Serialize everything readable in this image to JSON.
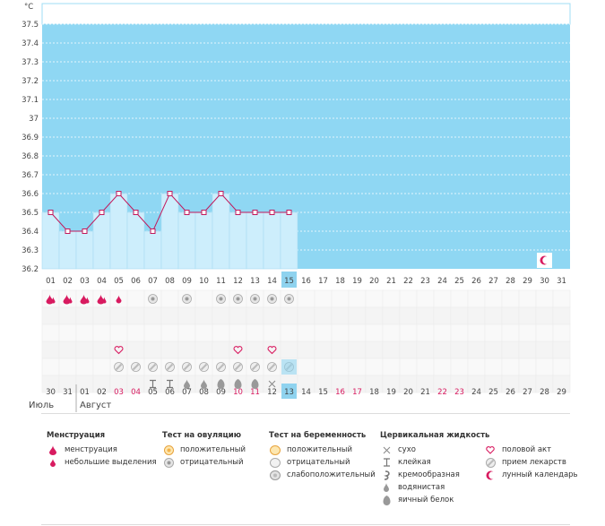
{
  "temp_unit": "°C",
  "y_labels": [
    "37.5",
    "37.4",
    "37.3",
    "37.2",
    "37.1",
    "37",
    "36.9",
    "36.8",
    "36.7",
    "36.6",
    "36.5",
    "36.4",
    "36.3",
    "36.2"
  ],
  "cycle_days": [
    "01",
    "02",
    "03",
    "04",
    "05",
    "06",
    "07",
    "08",
    "09",
    "10",
    "11",
    "12",
    "13",
    "14",
    "15",
    "16",
    "17",
    "18",
    "19",
    "20",
    "21",
    "22",
    "23",
    "24",
    "25",
    "26",
    "27",
    "28",
    "29",
    "30",
    "31"
  ],
  "calendar_days": [
    "30",
    "31",
    "01",
    "02",
    "03",
    "04",
    "05",
    "06",
    "07",
    "08",
    "09",
    "10",
    "11",
    "12",
    "13",
    "14",
    "15",
    "16",
    "17",
    "18",
    "19",
    "20",
    "21",
    "22",
    "23",
    "24",
    "25",
    "26",
    "27",
    "28",
    "29"
  ],
  "calendar_red": [
    4,
    5,
    11,
    12,
    17,
    18,
    23,
    24
  ],
  "today_index": 14,
  "months": {
    "july": "Июль",
    "august": "Август"
  },
  "colors": {
    "sky": "#8fd7f3",
    "bar": "#cdeefc",
    "line": "#c2185b",
    "accent": "#d81b60",
    "highlight": "#8fd3ef"
  },
  "chart_data": {
    "type": "line",
    "x": [
      "01",
      "02",
      "03",
      "04",
      "05",
      "06",
      "07",
      "08",
      "09",
      "10",
      "11",
      "12",
      "13",
      "14",
      "15"
    ],
    "values": [
      36.5,
      36.4,
      36.4,
      36.5,
      36.6,
      36.5,
      36.4,
      36.6,
      36.5,
      36.5,
      36.6,
      36.5,
      36.5,
      36.5,
      36.5
    ],
    "ylim": [
      36.2,
      37.6
    ],
    "ylabel": "°C"
  },
  "rows": {
    "menstruation": [
      "heavy",
      "heavy",
      "heavy",
      "heavy",
      "light"
    ],
    "ovulation_test": [
      null,
      null,
      null,
      null,
      null,
      null,
      "negative",
      null,
      "negative",
      null,
      "negative",
      "negative",
      "negative",
      "negative",
      "negative"
    ],
    "intercourse_days": [
      5,
      12,
      14
    ],
    "medicine_days": [
      5,
      6,
      7,
      8,
      9,
      10,
      11,
      12,
      13,
      14,
      15
    ],
    "fluid": [
      null,
      null,
      null,
      null,
      null,
      null,
      "sticky",
      "sticky",
      "watery",
      "watery",
      "eggwhite",
      "eggwhite",
      "eggwhite",
      "dry",
      null
    ]
  },
  "moon_day_index": 29,
  "legend": {
    "menstruation": {
      "title": "Менструация",
      "items": [
        "менструация",
        "небольшие выделения"
      ]
    },
    "ovulation": {
      "title": "Тест на овуляцию",
      "items": [
        "положительный",
        "отрицательный"
      ]
    },
    "pregnancy": {
      "title": "Тест на беременность",
      "items": [
        "положительный",
        "отрицательный",
        "слабоположительный"
      ]
    },
    "fluid": {
      "title": "Цервикальная жидкость",
      "items": [
        "сухо",
        "клейкая",
        "кремообразная",
        "водянистая",
        "яичный белок"
      ]
    },
    "other": {
      "items": [
        "половой акт",
        "прием лекарств",
        "лунный календарь"
      ]
    }
  }
}
